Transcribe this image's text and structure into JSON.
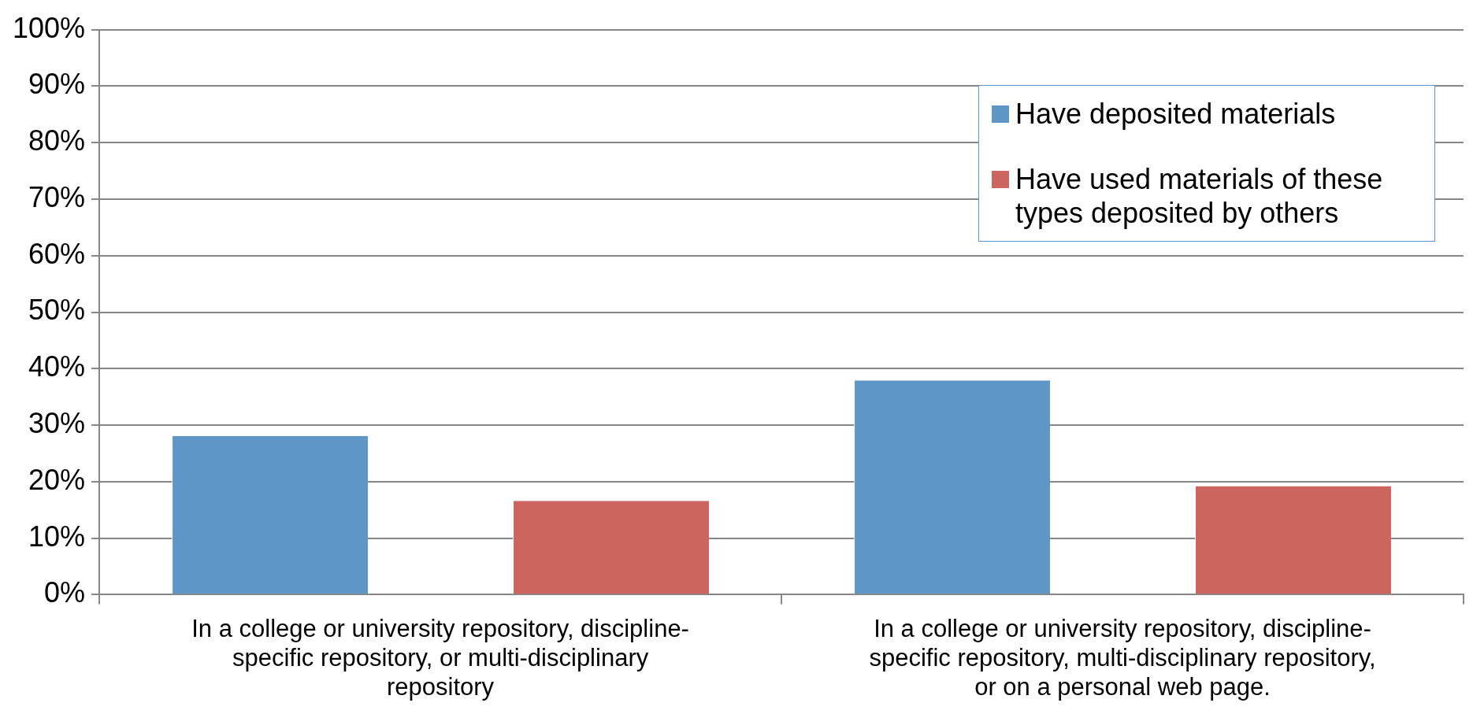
{
  "chart_data": {
    "type": "bar",
    "categories": [
      "In a college or university repository, discipline-specific repository, or multi-disciplinary repository",
      "In a college or university repository, discipline-specific repository, multi-disciplinary repository, or on a personal web page."
    ],
    "series": [
      {
        "name": "Have deposited materials",
        "color": "#5f95c7",
        "values": [
          28.1,
          37.9
        ]
      },
      {
        "name": "Have used materials of these types deposited by others",
        "color": "#cc655f",
        "values": [
          16.6,
          19.2
        ]
      }
    ],
    "ylim": [
      0,
      100
    ],
    "yticks": [
      {
        "value": 0,
        "label": "0%"
      },
      {
        "value": 10,
        "label": "10%"
      },
      {
        "value": 20,
        "label": "20%"
      },
      {
        "value": 30,
        "label": "30%"
      },
      {
        "value": 40,
        "label": "40%"
      },
      {
        "value": 50,
        "label": "50%"
      },
      {
        "value": 60,
        "label": "60%"
      },
      {
        "value": 70,
        "label": "70%"
      },
      {
        "value": 80,
        "label": "80%"
      },
      {
        "value": 90,
        "label": "90%"
      },
      {
        "value": 100,
        "label": "100%"
      }
    ],
    "grid": "y",
    "legend": "top right"
  }
}
